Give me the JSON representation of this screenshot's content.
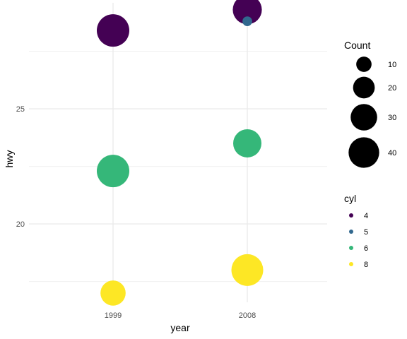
{
  "chart_data": {
    "type": "scatter",
    "xlabel": "year",
    "ylabel": "hwy",
    "x_categories": [
      "1999",
      "2008"
    ],
    "ylim": [
      16.6,
      29.6
    ],
    "y_ticks": [
      20,
      25
    ],
    "y_tick_labels": [
      "20",
      "25"
    ],
    "grid": true,
    "points": [
      {
        "x": "1999",
        "y": 28.4,
        "cyl": "4",
        "count": 45
      },
      {
        "x": "1999",
        "y": 22.3,
        "cyl": "6",
        "count": 45
      },
      {
        "x": "1999",
        "y": 17.0,
        "cyl": "8",
        "count": 27
      },
      {
        "x": "2008",
        "y": 29.3,
        "cyl": "4",
        "count": 36
      },
      {
        "x": "2008",
        "y": 28.8,
        "cyl": "5",
        "count": 4
      },
      {
        "x": "2008",
        "y": 23.5,
        "cyl": "6",
        "count": 34
      },
      {
        "x": "2008",
        "y": 18.0,
        "cyl": "8",
        "count": 43
      }
    ],
    "legend_size": {
      "title": "Count",
      "values": [
        10,
        20,
        30,
        40
      ],
      "labels": [
        "10",
        "20",
        "30",
        "40"
      ]
    },
    "legend_color": {
      "title": "cyl",
      "entries": [
        {
          "label": "4",
          "color": "#440154"
        },
        {
          "label": "5",
          "color": "#31688e"
        },
        {
          "label": "6",
          "color": "#35b779"
        },
        {
          "label": "8",
          "color": "#fde725"
        }
      ]
    },
    "legend_placement": "right"
  }
}
